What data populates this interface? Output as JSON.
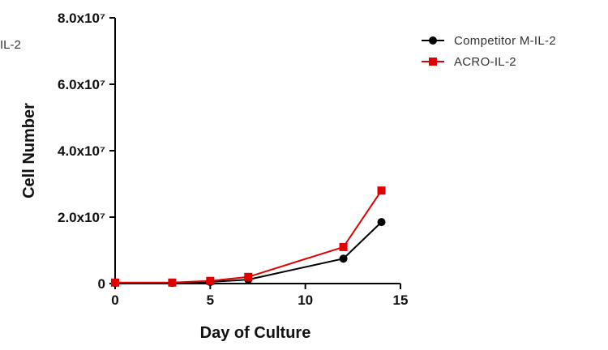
{
  "side_label": "IL-2",
  "chart_data": {
    "type": "line",
    "xlabel": "Day of Culture",
    "ylabel": "Cell Number",
    "xlim": [
      0,
      15
    ],
    "ylim": [
      0,
      80000000
    ],
    "x_ticks": [
      0,
      5,
      10,
      15
    ],
    "x_tick_labels": [
      "0",
      "5",
      "10",
      "15"
    ],
    "y_ticks": [
      0,
      20000000,
      40000000,
      60000000,
      80000000
    ],
    "y_tick_labels": [
      "0",
      "2.0x10⁷",
      "4.0x10⁷",
      "6.0x10⁷",
      "8.0x10⁷"
    ],
    "grid": false,
    "legend_position": "top-right",
    "series": [
      {
        "name": "Competitor M-IL-2",
        "color": "#000000",
        "marker": "circle",
        "x": [
          0,
          3,
          5,
          7,
          12,
          14
        ],
        "y": [
          200000,
          200000,
          500000,
          1200000,
          7500000,
          18500000
        ]
      },
      {
        "name": "ACRO-IL-2",
        "color": "#e00000",
        "marker": "square",
        "x": [
          0,
          3,
          5,
          7,
          12,
          14
        ],
        "y": [
          300000,
          300000,
          800000,
          2000000,
          11000000,
          28000000
        ]
      }
    ]
  }
}
